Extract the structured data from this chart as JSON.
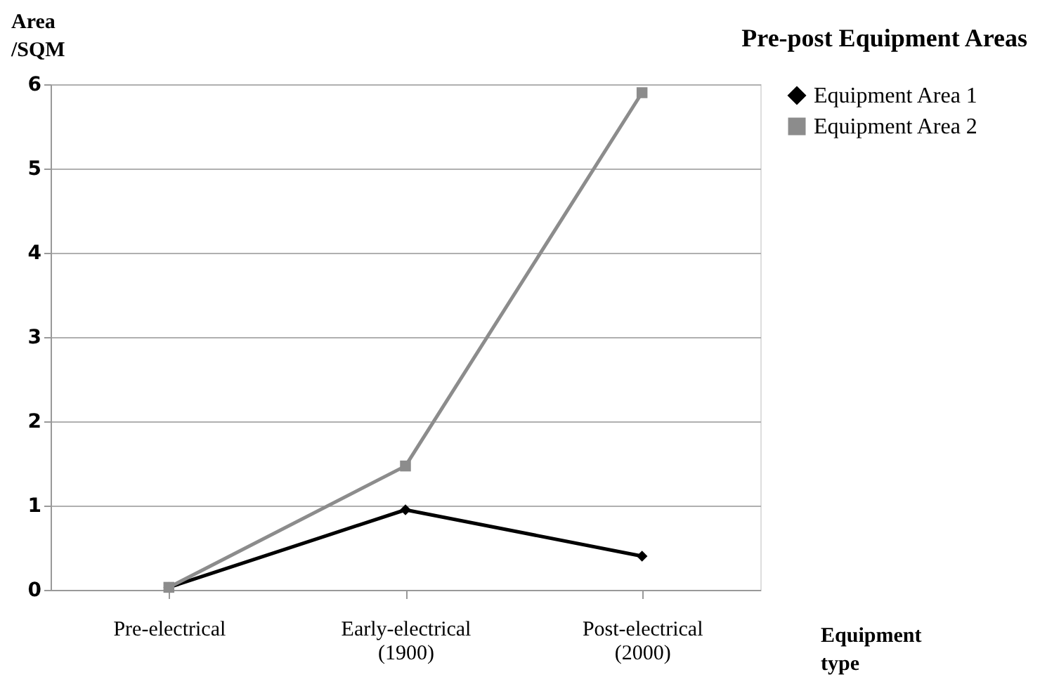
{
  "chart_data": {
    "type": "line",
    "title": "Pre-post Equipment Areas",
    "xlabel": "Equipment\ntype",
    "ylabel": "Area\n/SQM",
    "categories": [
      "Pre-electrical",
      "Early-electrical\n(1900)",
      "Post-electrical\n(2000)"
    ],
    "series": [
      {
        "name": "Equipment Area 1",
        "color": "#000000",
        "marker": "diamond",
        "values": [
          0.03,
          0.95,
          0.4
        ]
      },
      {
        "name": "Equipment Area 2",
        "color": "#8c8c8c",
        "marker": "square",
        "values": [
          0.03,
          1.47,
          5.9
        ]
      }
    ],
    "ylim": [
      0,
      6
    ],
    "yticks": [
      0,
      1,
      2,
      3,
      4,
      5,
      6
    ],
    "grid": "y",
    "legend": "right",
    "line_style": "solid"
  }
}
